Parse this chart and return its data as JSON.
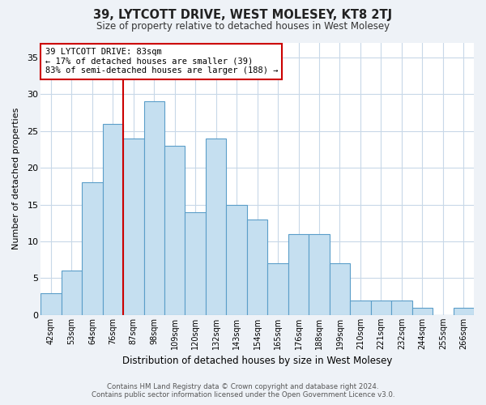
{
  "title": "39, LYTCOTT DRIVE, WEST MOLESEY, KT8 2TJ",
  "subtitle": "Size of property relative to detached houses in West Molesey",
  "xlabel": "Distribution of detached houses by size in West Molesey",
  "ylabel": "Number of detached properties",
  "footer_line1": "Contains HM Land Registry data © Crown copyright and database right 2024.",
  "footer_line2": "Contains public sector information licensed under the Open Government Licence v3.0.",
  "bar_labels": [
    "42sqm",
    "53sqm",
    "64sqm",
    "76sqm",
    "87sqm",
    "98sqm",
    "109sqm",
    "120sqm",
    "132sqm",
    "143sqm",
    "154sqm",
    "165sqm",
    "176sqm",
    "188sqm",
    "199sqm",
    "210sqm",
    "221sqm",
    "232sqm",
    "244sqm",
    "255sqm",
    "266sqm"
  ],
  "bar_values": [
    3,
    6,
    18,
    26,
    24,
    29,
    23,
    14,
    24,
    15,
    13,
    7,
    11,
    11,
    7,
    2,
    2,
    2,
    1,
    0,
    1
  ],
  "bar_color": "#c5dff0",
  "bar_edge_color": "#5b9ec9",
  "property_line_index": 4,
  "property_line_color": "#cc0000",
  "annotation_title": "39 LYTCOTT DRIVE: 83sqm",
  "annotation_line2": "← 17% of detached houses are smaller (39)",
  "annotation_line3": "83% of semi-detached houses are larger (188) →",
  "annotation_box_color": "#ffffff",
  "annotation_box_edge_color": "#cc0000",
  "ylim": [
    0,
    37
  ],
  "yticks": [
    0,
    5,
    10,
    15,
    20,
    25,
    30,
    35
  ],
  "background_color": "#eef2f7",
  "plot_bg_color": "#ffffff",
  "grid_color": "#c8d8e8"
}
